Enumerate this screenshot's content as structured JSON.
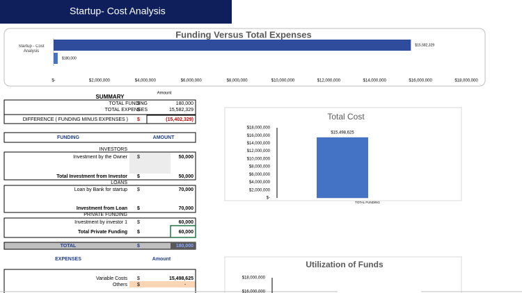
{
  "header": {
    "title": "Startup- Cost Analysis"
  },
  "summary": {
    "title": "SUMMARY",
    "amount_header": "Amount",
    "rows": [
      [
        "TOTAL FUNDING",
        "$",
        "180,000"
      ],
      [
        "TOTAL EXPENSES",
        "$",
        "15,582,329"
      ],
      [
        "DIFFERENCE ( FUNDING MINUS EXPENSES )",
        "$",
        "(15,402,329)"
      ]
    ]
  },
  "funding": {
    "headers": [
      "FUNDING",
      "AMOUNT"
    ],
    "rows": [
      [
        "INVESTORS"
      ],
      [
        "Investment by the Owner",
        "$",
        "50,000"
      ],
      [
        "Total Investment from Investor",
        "$",
        "50,000"
      ],
      [
        "LOANS"
      ],
      [
        "Loan by Bank for startup",
        "$",
        "70,000"
      ],
      [
        "Investment from Loan",
        "$",
        "70,000"
      ],
      [
        "PRIVATE FUNDING"
      ],
      [
        "Investment by investor 1",
        "$",
        "60,000"
      ],
      [
        "Total Private Funding",
        "$",
        "60,000"
      ]
    ],
    "total": [
      "TOTAL",
      "$",
      "180,000"
    ]
  },
  "expenses": {
    "headers": [
      "EXPENSES",
      "Amount"
    ],
    "rows": [
      [
        "Variable Costs",
        "$",
        "15,498,625"
      ],
      [
        "Others",
        "$",
        "-"
      ]
    ]
  },
  "chart_data": [
    {
      "type": "hbar",
      "title": "Funding Versus Total Expenses",
      "categories": [
        "Startup - Cost Analysis"
      ],
      "series": [
        {
          "color": "#2f4b9c",
          "values": [
            15582329
          ],
          "value_labels": [
            "$15,582,329"
          ]
        },
        {
          "color": "#4472c4",
          "values": [
            180000
          ],
          "value_labels": [
            "$180,000"
          ]
        }
      ],
      "xlim": [
        0,
        18000000
      ],
      "xticks": [
        {
          "value": 0,
          "label": "$-"
        },
        {
          "value": 2000000,
          "label": "$2,000,000"
        },
        {
          "value": 4000000,
          "label": "$4,000,000"
        },
        {
          "value": 6000000,
          "label": "$6,000,000"
        },
        {
          "value": 8000000,
          "label": "$8,000,000"
        },
        {
          "value": 10000000,
          "label": "$10,000,000"
        },
        {
          "value": 12000000,
          "label": "$12,000,000"
        },
        {
          "value": 14000000,
          "label": "$14,000,000"
        },
        {
          "value": 16000000,
          "label": "$16,000,000"
        },
        {
          "value": 18000000,
          "label": "$18,000,000"
        }
      ],
      "grid": false
    },
    {
      "type": "bar",
      "title": "Total Cost",
      "categories": [
        "TOTAL FUNDING"
      ],
      "values": [
        15498625
      ],
      "value_labels": [
        "$15,498,625"
      ],
      "color": "#4472c4",
      "ylim": [
        0,
        18000000
      ],
      "yticks": [
        {
          "value": 0,
          "label": "$-"
        },
        {
          "value": 2000000,
          "label": "$2,000,000"
        },
        {
          "value": 4000000,
          "label": "$4,000,000"
        },
        {
          "value": 6000000,
          "label": "$6,000,000"
        },
        {
          "value": 8000000,
          "label": "$8,000,000"
        },
        {
          "value": 10000000,
          "label": "$10,000,000"
        },
        {
          "value": 12000000,
          "label": "$12,000,000"
        },
        {
          "value": 14000000,
          "label": "$14,000,000"
        },
        {
          "value": 16000000,
          "label": "$16,000,000"
        },
        {
          "value": 18000000,
          "label": "$18,000,000"
        }
      ],
      "grid": false
    },
    {
      "type": "bar",
      "title": "Utilization of Funds",
      "ylim": [
        0,
        18000000
      ],
      "yticks": [
        {
          "value": 18000000,
          "label": "$18,000,000"
        },
        {
          "value": 16000000,
          "label": "$16,000,000"
        }
      ],
      "grid": false
    }
  ]
}
